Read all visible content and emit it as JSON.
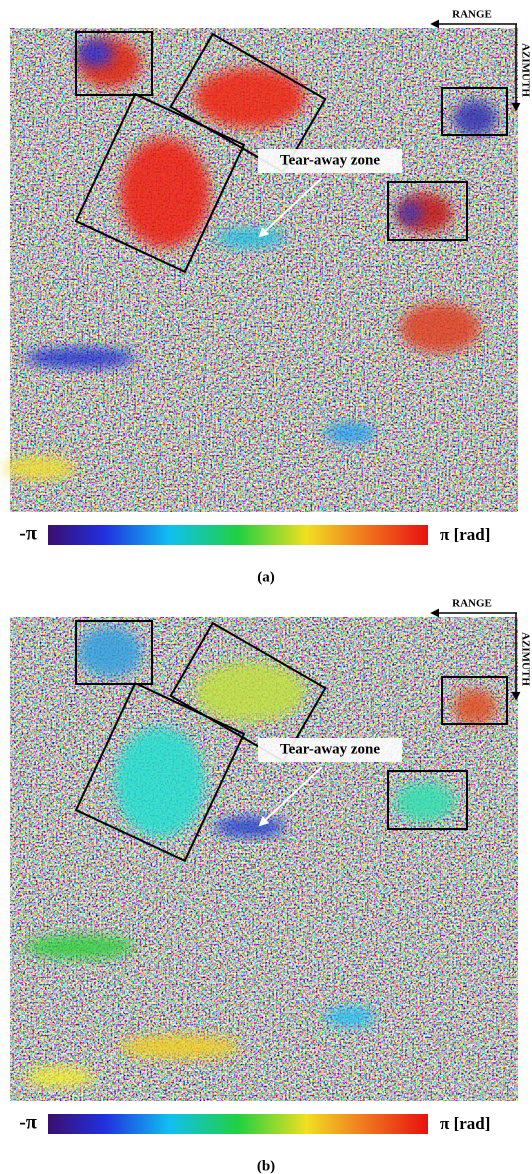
{
  "panels": [
    {
      "range_label": "RANGE",
      "azimuth_label": "AZIMUTH",
      "annotation": "Tear-away zone",
      "colorbar_min": "-π",
      "colorbar_max": "π [rad]",
      "caption": "(a)"
    },
    {
      "range_label": "RANGE",
      "azimuth_label": "AZIMUTH",
      "annotation": "Tear-away zone",
      "colorbar_min": "-π",
      "colorbar_max": "π [rad]",
      "caption": "(b)"
    }
  ]
}
